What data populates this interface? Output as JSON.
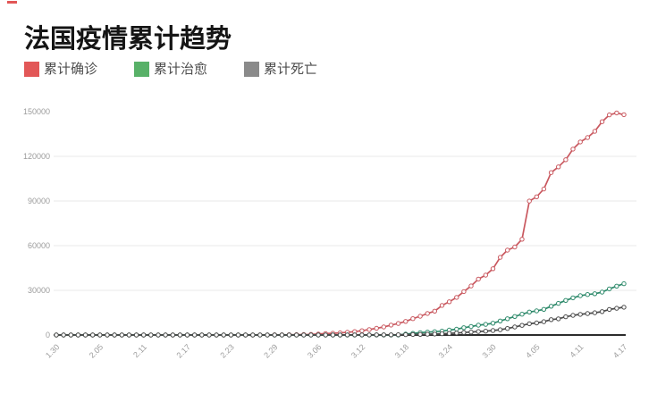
{
  "page": {
    "background": "#ffffff",
    "top_left_mark_color": "#e25656"
  },
  "chart_data": {
    "type": "line",
    "title": "法国疫情累计趋势",
    "xlabel": "",
    "ylabel": "",
    "ylim": [
      0,
      150000
    ],
    "y_ticks": [
      0,
      30000,
      60000,
      90000,
      120000,
      150000
    ],
    "x_tick_labels": [
      "1.30",
      "2.05",
      "2.11",
      "2.17",
      "2.23",
      "2.29",
      "3.06",
      "3.12",
      "3.18",
      "3.24",
      "3.30",
      "4.05",
      "4.11",
      "4.17"
    ],
    "grid": true,
    "gridline_color": "#e9e9e9",
    "axis_line_color": "#2d2d2d",
    "tick_label_color": "#9b9b9b",
    "legend_position": "top-left",
    "marker": "circle-open",
    "x": [
      "1.30",
      "1.31",
      "2.01",
      "2.02",
      "2.03",
      "2.04",
      "2.05",
      "2.06",
      "2.07",
      "2.08",
      "2.09",
      "2.10",
      "2.11",
      "2.12",
      "2.13",
      "2.14",
      "2.15",
      "2.16",
      "2.17",
      "2.18",
      "2.19",
      "2.20",
      "2.21",
      "2.22",
      "2.23",
      "2.24",
      "2.25",
      "2.26",
      "2.27",
      "2.28",
      "2.29",
      "3.01",
      "3.02",
      "3.03",
      "3.04",
      "3.05",
      "3.06",
      "3.07",
      "3.08",
      "3.09",
      "3.10",
      "3.11",
      "3.12",
      "3.13",
      "3.14",
      "3.15",
      "3.16",
      "3.17",
      "3.18",
      "3.19",
      "3.20",
      "3.21",
      "3.22",
      "3.23",
      "3.24",
      "3.25",
      "3.26",
      "3.27",
      "3.28",
      "3.29",
      "3.30",
      "3.31",
      "4.01",
      "4.02",
      "4.03",
      "4.04",
      "4.05",
      "4.06",
      "4.07",
      "4.08",
      "4.09",
      "4.10",
      "4.11",
      "4.12",
      "4.13",
      "4.14",
      "4.15",
      "4.16",
      "4.17"
    ],
    "series": [
      {
        "name": "累计确诊",
        "swatch_color": "#e25757",
        "line_color": "#c9585f",
        "values": [
          5,
          5,
          6,
          6,
          6,
          6,
          6,
          6,
          6,
          11,
          11,
          11,
          11,
          11,
          11,
          11,
          12,
          12,
          12,
          12,
          12,
          12,
          12,
          12,
          12,
          12,
          14,
          18,
          38,
          57,
          100,
          130,
          191,
          212,
          285,
          423,
          653,
          949,
          1126,
          1412,
          1784,
          2281,
          2876,
          3661,
          4499,
          5423,
          6633,
          7730,
          9134,
          10995,
          12612,
          14459,
          16018,
          19856,
          22302,
          25233,
          29155,
          32964,
          37575,
          40174,
          44550,
          52128,
          56989,
          59105,
          64338,
          89953,
          92839,
          98010,
          109069,
          112950,
          117749,
          124869,
          129654,
          132591,
          136779,
          143303,
          147863,
          149130,
          147969
        ]
      },
      {
        "name": "累计治愈",
        "swatch_color": "#58b168",
        "line_color": "#2e8a6b",
        "values": [
          0,
          0,
          0,
          0,
          0,
          0,
          0,
          0,
          0,
          0,
          0,
          0,
          0,
          0,
          0,
          0,
          2,
          4,
          4,
          4,
          4,
          6,
          6,
          6,
          6,
          6,
          10,
          11,
          11,
          11,
          12,
          12,
          12,
          12,
          12,
          12,
          12,
          12,
          12,
          12,
          12,
          12,
          12,
          12,
          12,
          12,
          12,
          12,
          602,
          1100,
          1587,
          1910,
          2200,
          2567,
          3281,
          3900,
          4948,
          5700,
          6624,
          7132,
          7924,
          9444,
          10934,
          12428,
          14008,
          15438,
          16183,
          17250,
          19337,
          21254,
          23206,
          24932,
          26391,
          27186,
          27718,
          28805,
          30955,
          32812,
          34420
        ]
      },
      {
        "name": "累计死亡",
        "swatch_color": "#8a8a8a",
        "line_color": "#4a4a4a",
        "values": [
          0,
          0,
          0,
          0,
          0,
          0,
          0,
          0,
          0,
          0,
          0,
          0,
          0,
          0,
          0,
          0,
          1,
          1,
          1,
          1,
          1,
          1,
          1,
          1,
          1,
          1,
          2,
          2,
          2,
          2,
          2,
          2,
          3,
          4,
          4,
          6,
          9,
          11,
          19,
          25,
          33,
          48,
          61,
          79,
          91,
          127,
          148,
          175,
          264,
          372,
          450,
          562,
          674,
          860,
          1100,
          1331,
          1696,
          1995,
          2314,
          2606,
          3024,
          3523,
          4403,
          5387,
          6507,
          7560,
          8078,
          8911,
          10328,
          10869,
          12210,
          13197,
          13832,
          14393,
          14967,
          15729,
          17167,
          17920,
          18681
        ]
      }
    ]
  }
}
